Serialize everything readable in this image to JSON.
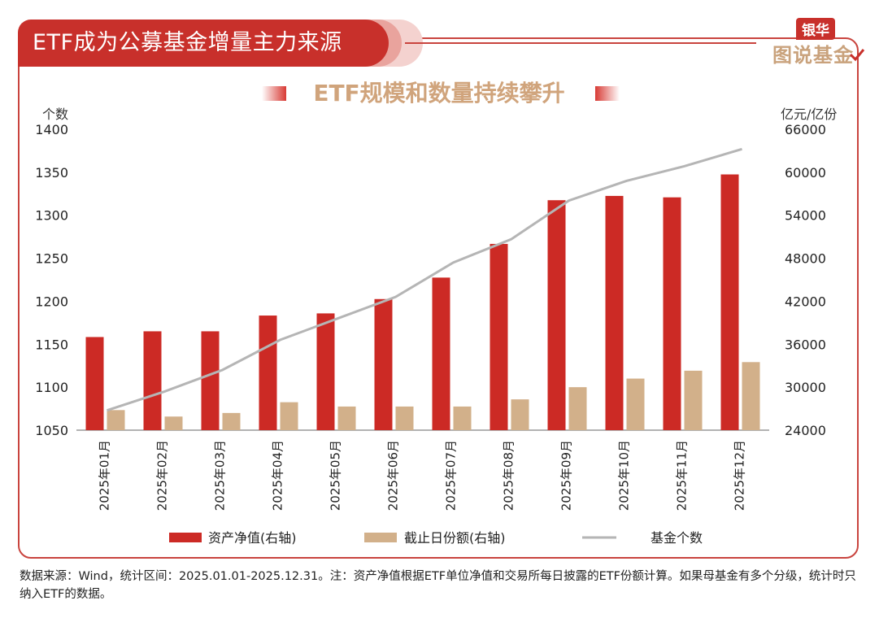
{
  "header": {
    "title": "ETF成为公募基金增量主力来源"
  },
  "logo": {
    "tag": "银华",
    "name": "图说基金"
  },
  "chart_data": {
    "type": "bar+line",
    "title": "ETF规模和数量持续攀升",
    "left_axis_unit": "个数",
    "right_axis_unit": "亿元/亿份",
    "ylim_left": [
      1050,
      1400
    ],
    "yticks_left": [
      "1400",
      "1350",
      "1300",
      "1250",
      "1200",
      "1150",
      "1100",
      "1050"
    ],
    "ylim_right": [
      24000,
      66000
    ],
    "yticks_right": [
      "66000",
      "60000",
      "54000",
      "48000",
      "42000",
      "36000",
      "30000",
      "24000"
    ],
    "categories": [
      "2025年01月",
      "2025年02月",
      "2025年03月",
      "2025年04月",
      "2025年05月",
      "2025年06月",
      "2025年07月",
      "2025年08月",
      "2025年09月",
      "2025年10月",
      "2025年11月",
      "2025年12月"
    ],
    "series": [
      {
        "name": "资产净值(右轴)",
        "type": "bar",
        "axis": "right",
        "color": "#cc2a25",
        "values": [
          37000,
          37800,
          37800,
          40000,
          40300,
          42300,
          45300,
          50000,
          56100,
          56700,
          56500,
          59700
        ]
      },
      {
        "name": "截止日份额(右轴)",
        "type": "bar",
        "axis": "right",
        "color": "#d2b08a",
        "values": [
          26800,
          25900,
          26400,
          27900,
          27300,
          27300,
          27300,
          28300,
          30000,
          31200,
          32300,
          33500
        ]
      },
      {
        "name": "基金个数",
        "type": "line",
        "axis": "left",
        "color": "#b5b5b5",
        "values": [
          1073,
          1095,
          1120,
          1155,
          1180,
          1205,
          1245,
          1272,
          1317,
          1340,
          1357,
          1377
        ]
      }
    ],
    "legend_position": "bottom"
  },
  "footnote": "数据来源：Wind，统计区间：2025.01.01-2025.12.31。注：资产净值根据ETF单位净值和交易所每日披露的ETF份额计算。如果母基金有多个分级，统计时只纳入ETF的数据。"
}
